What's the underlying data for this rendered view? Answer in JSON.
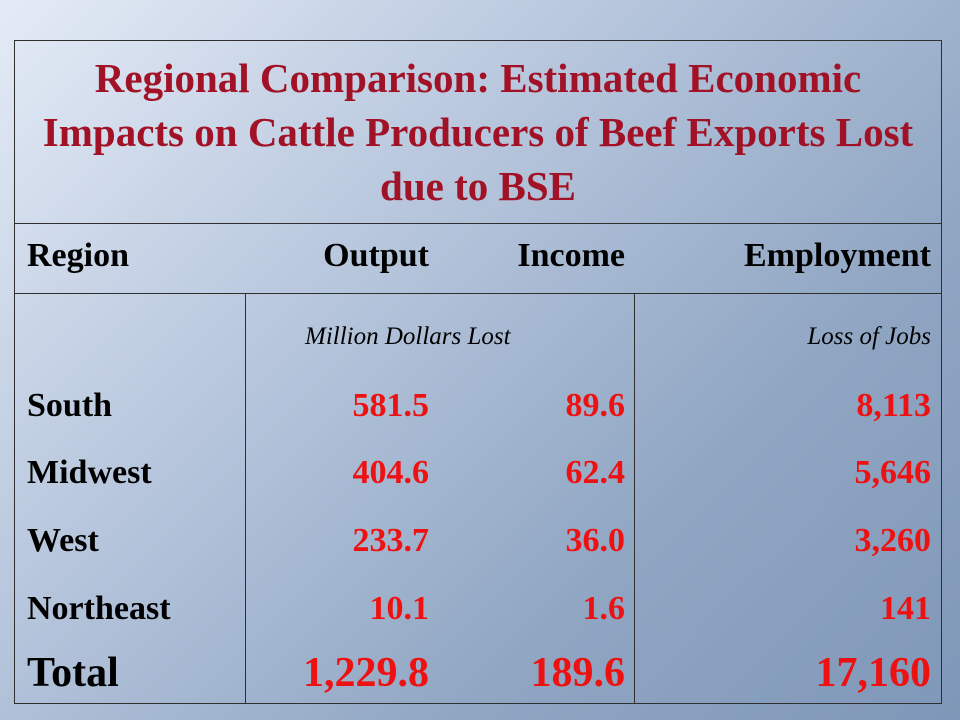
{
  "title": "Regional Comparison: Estimated Economic Impacts on Cattle Producers of Beef Exports Lost due to BSE",
  "columns": {
    "region": "Region",
    "output": "Output",
    "income": "Income",
    "employment": "Employment"
  },
  "subheaders": {
    "money": "Million Dollars Lost",
    "jobs": "Loss of Jobs"
  },
  "rows": [
    {
      "region": "South",
      "output": "581.5",
      "income": "89.6",
      "employment": "8,113"
    },
    {
      "region": "Midwest",
      "output": "404.6",
      "income": "62.4",
      "employment": "5,646"
    },
    {
      "region": "West",
      "output": "233.7",
      "income": "36.0",
      "employment": "3,260"
    },
    {
      "region": "Northeast",
      "output": "10.1",
      "income": "1.6",
      "employment": "141"
    }
  ],
  "total": {
    "region": "Total",
    "output": "1,229.8",
    "income": "189.6",
    "employment": "17,160"
  },
  "colors": {
    "title": "#a11226",
    "values": "#ee1111",
    "labels": "#000000"
  }
}
